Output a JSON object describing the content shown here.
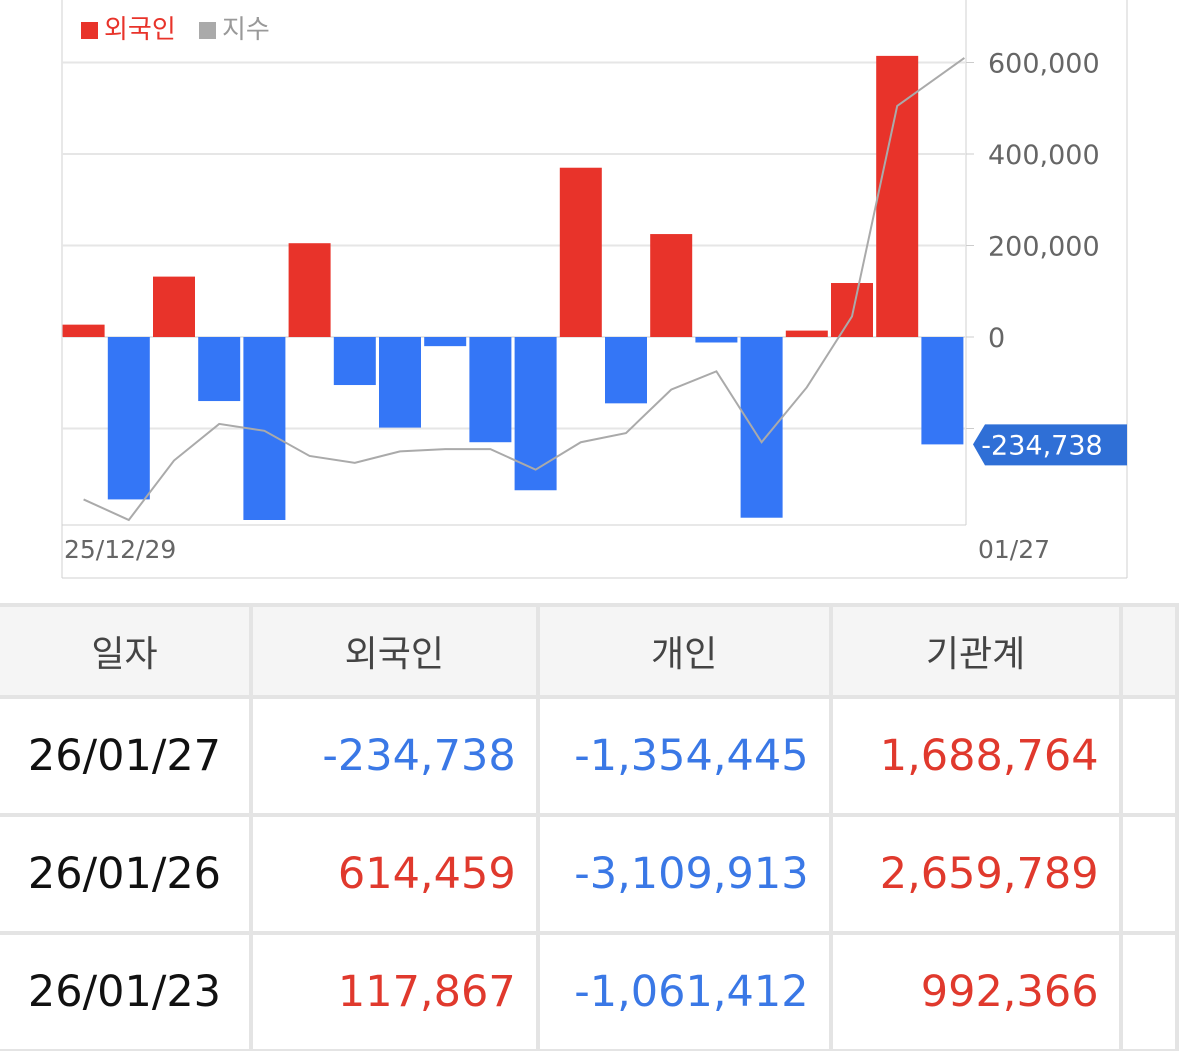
{
  "chart_data": {
    "type": "bar",
    "legend": [
      {
        "name": "외국인",
        "color": "#e8332a"
      },
      {
        "name": "지수",
        "color": "#aaaaaa"
      }
    ],
    "legend_position": "top-left",
    "x_start_label": "25/12/29",
    "x_end_label": "01/27",
    "y_ticks": [
      600000,
      400000,
      200000,
      0
    ],
    "y_tick_labels": [
      "600,000",
      "400,000",
      "200,000",
      "0"
    ],
    "ylim": [
      -420000,
      620000
    ],
    "current_value_label": "-234,738",
    "series": [
      {
        "name": "외국인",
        "values": [
          27000,
          -355000,
          132000,
          -140000,
          -400000,
          205000,
          -105000,
          -198000,
          -20000,
          -230000,
          -335000,
          370000,
          -145000,
          225000,
          -12000,
          -395000,
          14000,
          118000,
          614459,
          -234738
        ]
      },
      {
        "name": "지수",
        "values": [
          -355000,
          -400000,
          -270000,
          -190000,
          -205000,
          -260000,
          -275000,
          -250000,
          -245000,
          -245000,
          -290000,
          -230000,
          -210000,
          -115000,
          -75000,
          -230000,
          -110000,
          45000,
          505000,
          610000
        ]
      }
    ],
    "colors": {
      "positive": "#e8332a",
      "negative": "#3476f6",
      "index_line": "#aaaaaa",
      "badge": "#2f6fd6"
    }
  },
  "table": {
    "headers": [
      "일자",
      "외국인",
      "개인",
      "기관계"
    ],
    "rows": [
      {
        "date": "26/01/27",
        "foreign": "-234,738",
        "individual": "-1,354,445",
        "institution": "1,688,764"
      },
      {
        "date": "26/01/26",
        "foreign": "614,459",
        "individual": "-3,109,913",
        "institution": "2,659,789"
      },
      {
        "date": "26/01/23",
        "foreign": "117,867",
        "individual": "-1,061,412",
        "institution": "992,366"
      }
    ]
  }
}
